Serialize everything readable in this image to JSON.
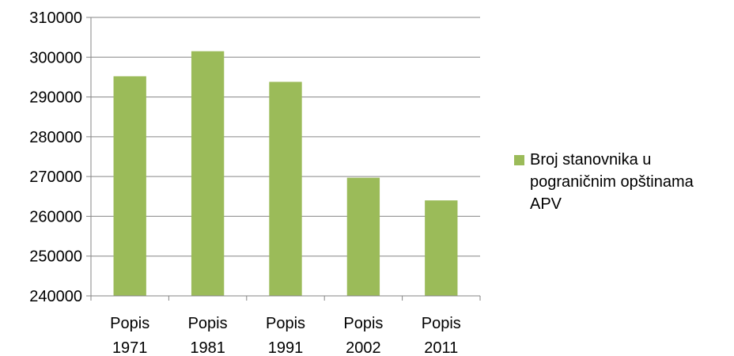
{
  "chart_data": {
    "type": "bar",
    "categories": [
      "Popis\n1971",
      "Popis\n1981",
      "Popis\n1991",
      "Popis\n2002",
      "Popis\n2011"
    ],
    "series": [
      {
        "name": "Broj stanovnika u\npograničnim opštinama\nAPV",
        "values": [
          295200,
          301500,
          293800,
          269700,
          264000
        ],
        "color": "#9bbb59"
      }
    ],
    "yticks": [
      240000,
      250000,
      260000,
      270000,
      280000,
      290000,
      300000,
      310000
    ],
    "ylim": [
      240000,
      310000
    ],
    "grid": true,
    "legend_position": "right"
  }
}
